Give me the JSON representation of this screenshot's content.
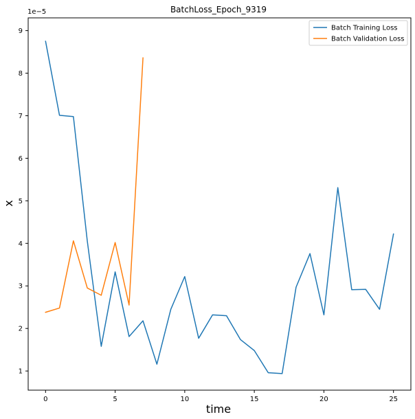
{
  "chart_data": {
    "type": "line",
    "title": "BatchLoss_Epoch_9319",
    "xlabel": "time",
    "ylabel": "x",
    "y_offset_label": "1e−5",
    "xlim": [
      -1.25,
      26.25
    ],
    "ylim": [
      0.55,
      9.3
    ],
    "x_ticks": [
      0,
      5,
      10,
      15,
      20,
      25
    ],
    "x_tick_labels": [
      "0",
      "5",
      "10",
      "15",
      "20",
      "25"
    ],
    "y_ticks": [
      1,
      2,
      3,
      4,
      5,
      6,
      7,
      8,
      9
    ],
    "y_tick_labels": [
      "1",
      "2",
      "3",
      "4",
      "5",
      "6",
      "7",
      "8",
      "9"
    ],
    "grid": false,
    "legend_position": "top-right",
    "series": [
      {
        "name": "Batch Training Loss",
        "color": "#1f77b4",
        "x": [
          0,
          1,
          2,
          3,
          4,
          5,
          6,
          7,
          8,
          9,
          10,
          11,
          12,
          13,
          14,
          15,
          16,
          17,
          18,
          19,
          20,
          21,
          22,
          23,
          24,
          25
        ],
        "values": [
          8.75,
          7.01,
          6.98,
          4.05,
          1.58,
          3.33,
          1.81,
          2.18,
          1.16,
          2.45,
          3.22,
          1.77,
          2.32,
          2.3,
          1.74,
          1.48,
          0.96,
          0.94,
          2.97,
          3.76,
          2.32,
          5.31,
          2.91,
          2.92,
          2.45,
          4.22
        ]
      },
      {
        "name": "Batch Validation Loss",
        "color": "#ff7f0e",
        "x": [
          0,
          1,
          2,
          3,
          4,
          5,
          6,
          7
        ],
        "values": [
          2.38,
          2.48,
          4.06,
          2.95,
          2.78,
          4.02,
          2.55,
          8.36
        ]
      }
    ]
  }
}
